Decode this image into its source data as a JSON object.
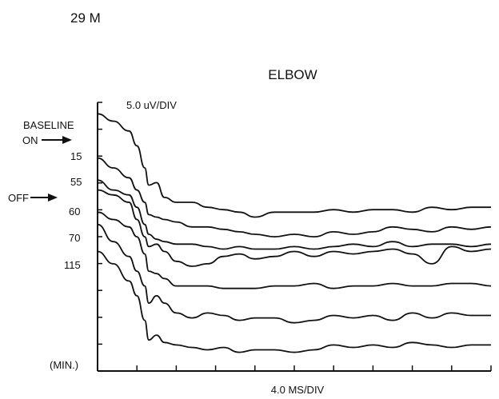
{
  "subject_label": "29 M",
  "title": "ELBOW",
  "amplitude_scale": "5.0 uV/DIV",
  "time_scale": "4.0 MS/DIV",
  "unit_label": "(MIN.)",
  "annotations": {
    "baseline": "BASELINE",
    "on": "ON",
    "off": "OFF"
  },
  "chart_data": {
    "type": "line",
    "title": "ELBOW",
    "xlabel": "4.0 MS/DIV",
    "ylabel": "5.0 uV/DIV",
    "grid": false,
    "x_divisions": 10,
    "y_divisions": 10,
    "x": [
      0.0,
      0.4,
      0.8,
      1.0,
      1.2,
      1.3,
      1.5,
      1.7,
      2.0,
      2.4,
      2.8,
      3.2,
      3.6,
      4.0,
      4.5,
      5.0,
      5.5,
      6.0,
      6.5,
      7.0,
      7.5,
      8.0,
      8.5,
      9.0,
      9.5,
      10.0
    ],
    "series": [
      {
        "name": "BASELINE",
        "values": [
          9.6,
          9.3,
          8.9,
          8.3,
          7.4,
          6.7,
          6.8,
          6.2,
          6.0,
          6.0,
          5.8,
          5.7,
          5.6,
          5.4,
          5.6,
          5.6,
          5.6,
          5.7,
          5.6,
          5.7,
          5.7,
          5.6,
          5.8,
          5.7,
          5.8,
          5.8
        ]
      },
      {
        "name": "15",
        "values": [
          7.8,
          7.4,
          7.0,
          6.5,
          6.0,
          5.5,
          5.4,
          5.3,
          5.2,
          5.0,
          5.0,
          4.9,
          4.8,
          4.7,
          4.6,
          4.7,
          4.6,
          4.8,
          4.7,
          4.8,
          5.0,
          4.9,
          4.8,
          5.0,
          4.9,
          5.0
        ]
      },
      {
        "name": "55",
        "values": [
          6.9,
          6.5,
          6.3,
          5.8,
          5.1,
          4.7,
          4.5,
          4.4,
          4.3,
          4.3,
          4.2,
          4.1,
          4.2,
          4.1,
          4.1,
          4.2,
          4.1,
          4.2,
          4.3,
          4.2,
          4.4,
          4.2,
          4.3,
          4.3,
          4.2,
          4.3
        ]
      },
      {
        "name": "60",
        "values": [
          6.5,
          6.3,
          6.0,
          5.3,
          4.6,
          4.2,
          4.3,
          4.0,
          3.6,
          3.4,
          3.5,
          3.8,
          3.9,
          3.7,
          3.8,
          4.0,
          3.8,
          4.0,
          3.9,
          4.0,
          4.1,
          3.9,
          3.5,
          4.2,
          4.0,
          4.1
        ]
      },
      {
        "name": "70",
        "values": [
          5.6,
          5.3,
          5.0,
          4.6,
          3.9,
          3.2,
          3.1,
          2.9,
          2.6,
          2.6,
          2.6,
          2.5,
          2.5,
          2.5,
          2.6,
          2.6,
          2.7,
          2.5,
          2.6,
          2.6,
          2.7,
          2.6,
          2.6,
          2.7,
          2.7,
          2.6
        ]
      },
      {
        "name": "115",
        "values": [
          5.1,
          4.4,
          3.8,
          3.2,
          2.6,
          1.9,
          2.2,
          1.9,
          1.5,
          1.3,
          1.5,
          1.4,
          1.2,
          1.3,
          1.3,
          1.1,
          1.2,
          1.4,
          1.3,
          1.4,
          1.2,
          1.5,
          1.3,
          1.5,
          1.4,
          1.4
        ]
      },
      {
        "name": "",
        "values": [
          4.0,
          3.5,
          2.8,
          2.2,
          1.2,
          0.4,
          0.6,
          0.3,
          0.2,
          0.1,
          0.0,
          0.1,
          -0.1,
          0.0,
          0.0,
          -0.1,
          0.0,
          0.2,
          0.1,
          0.2,
          0.1,
          0.3,
          0.2,
          0.1,
          0.2,
          0.2
        ]
      }
    ],
    "y_labels": [
      "15",
      "55",
      "60",
      "70",
      "115"
    ]
  }
}
